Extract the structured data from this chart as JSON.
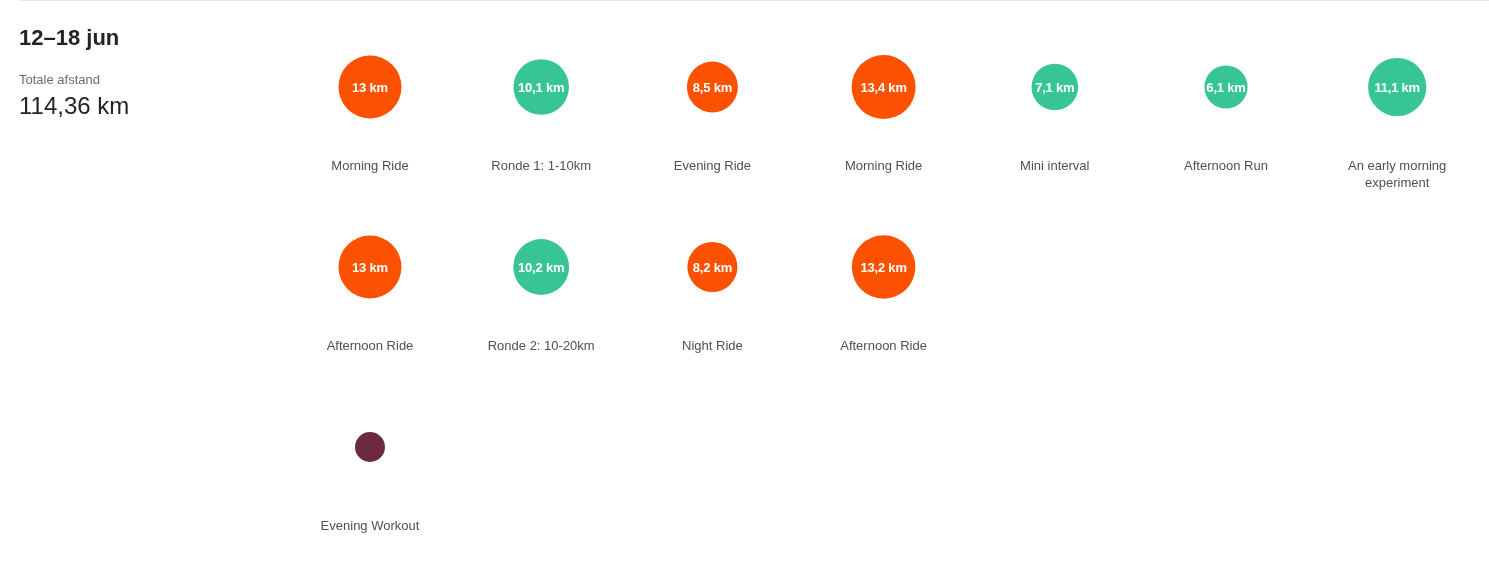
{
  "chart_data": {
    "type": "other",
    "title": "12–18 jun",
    "subtitle": "Totale afstand",
    "annotations": [
      "114,36 km"
    ],
    "categories": [
      "Morning Ride",
      "Ronde 1: 1-10km",
      "Evening Ride",
      "Morning Ride",
      "Mini interval",
      "Afternoon Run",
      "An early morning experiment",
      "Afternoon Ride",
      "Ronde 2: 10-20km",
      "Night Ride",
      "Afternoon Ride",
      null,
      null,
      null,
      "Evening Workout"
    ],
    "values": [
      13,
      10.1,
      8.5,
      13.4,
      7.1,
      6.1,
      11.1,
      13,
      10.2,
      8.2,
      13.2,
      null,
      null,
      null,
      null
    ],
    "value_labels": [
      "13 km",
      "10,1 km",
      "8,5 km",
      "13,4 km",
      "7,1 km",
      "6,1 km",
      "11,1 km",
      "13 km",
      "10,2 km",
      "8,2 km",
      "13,2 km",
      null,
      null,
      null,
      null
    ],
    "colors": [
      "#fc5200",
      "#37c597",
      "#fc5200",
      "#fc5200",
      "#37c597",
      "#37c597",
      "#37c597",
      "#fc5200",
      "#37c597",
      "#fc5200",
      "#fc5200",
      null,
      null,
      null,
      "#6d2a3e"
    ]
  }
}
